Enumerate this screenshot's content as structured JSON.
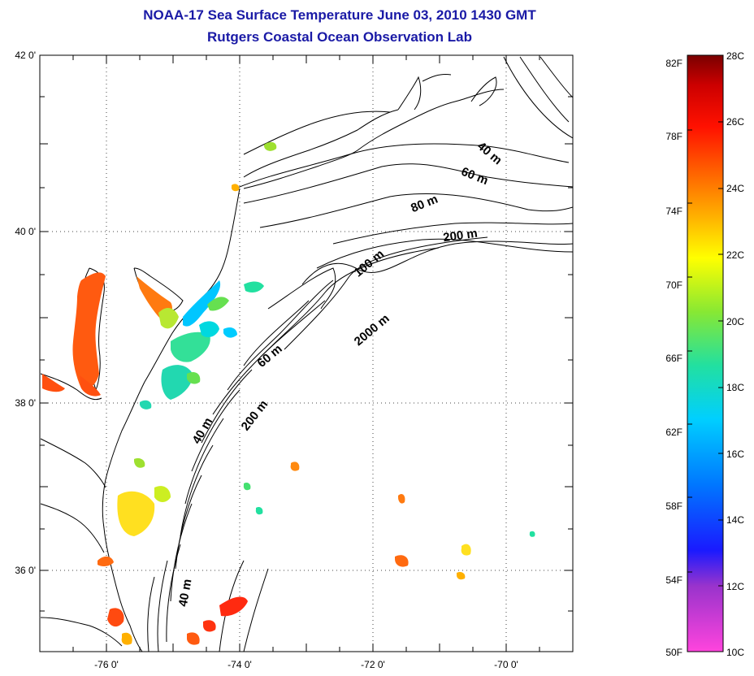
{
  "header": {
    "title_line1": "NOAA-17 Sea Surface Temperature June 03, 2010 1430 GMT",
    "title_line2": "Rutgers Coastal Ocean Observation Lab"
  },
  "map": {
    "lat_labels": [
      "42 0'",
      "40 0'",
      "38 0'",
      "36 0'"
    ],
    "lon_labels": [
      "-76 0'",
      "-74 0'",
      "-72 0'",
      "-70 0'"
    ],
    "depth_labels": [
      "40 m",
      "60 m",
      "80 m",
      "200 m",
      "100 m",
      "2000 m",
      "60 m",
      "200 m",
      "40 m",
      "40 m"
    ],
    "ocean_color": "#ffffff",
    "grid": "dotted"
  },
  "colorbar": {
    "f_labels": [
      "82F",
      "78F",
      "74F",
      "70F",
      "66F",
      "62F",
      "58F",
      "54F",
      "50F"
    ],
    "c_labels": [
      "28C",
      "26C",
      "24C",
      "22C",
      "20C",
      "18C",
      "16C",
      "14C",
      "12C",
      "10C"
    ],
    "colors": [
      "#ff44dd",
      "#9933cc",
      "#1a1aff",
      "#0077ff",
      "#00cfff",
      "#22e0a0",
      "#88e833",
      "#ffff00",
      "#ffb000",
      "#ff6600",
      "#ff1100",
      "#cc0000",
      "#7a0000"
    ]
  }
}
